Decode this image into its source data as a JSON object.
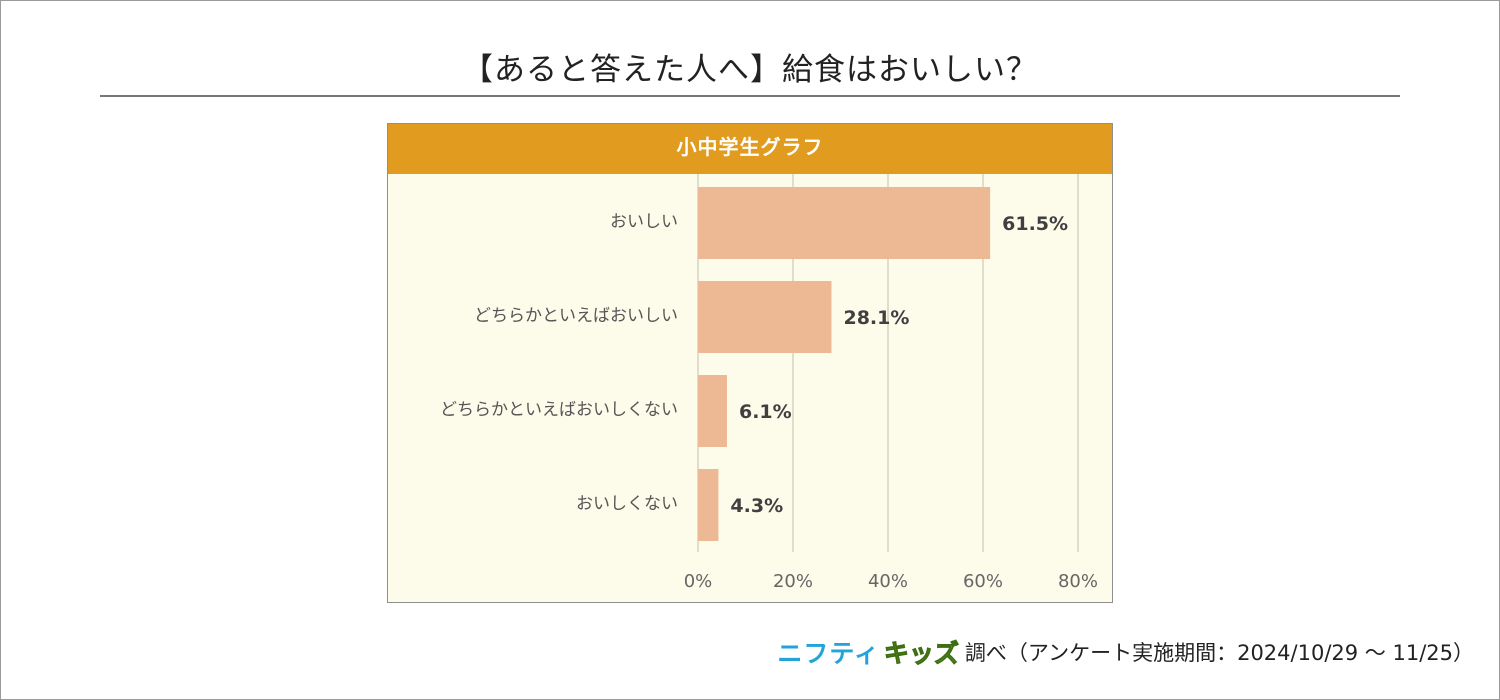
{
  "title": "【あると答えた人へ】給食はおいしい？",
  "chart_data": {
    "type": "bar",
    "orientation": "horizontal",
    "title": "小中学生グラフ",
    "categories": [
      "おいしい",
      "どちらかといえばおいしい",
      "どちらかといえばおいしくない",
      "おいしくない"
    ],
    "values": [
      61.5,
      28.1,
      6.1,
      4.3
    ],
    "value_labels": [
      "61.5%",
      "28.1%",
      "6.1%",
      "4.3%"
    ],
    "xlim": [
      0,
      80
    ],
    "ticks": [
      0,
      20,
      40,
      60,
      80
    ],
    "tick_labels": [
      "0%",
      "20%",
      "40%",
      "60%",
      "80%"
    ],
    "xlabel": "",
    "ylabel": "",
    "grid": true,
    "colors": {
      "bar": "#edb894",
      "grid": "#d6d3c3",
      "header": "#e19c1f",
      "background": "#fdfbea"
    }
  },
  "footer": {
    "logo_part1": "ニフティ",
    "logo_part2": "キッズ",
    "text": "調べ（アンケート実施期間：2024/10/29 ～ 11/25）"
  }
}
